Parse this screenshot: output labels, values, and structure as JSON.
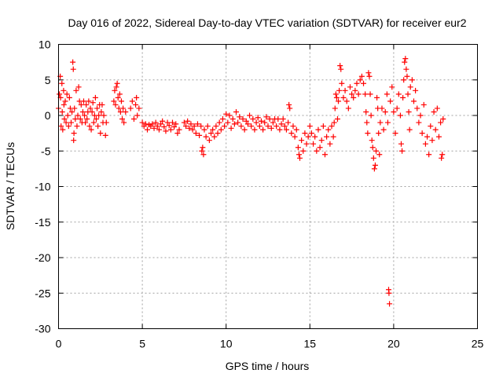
{
  "chart_data": {
    "type": "scatter",
    "title": "Day 016 of 2022, Sidereal Day-to-day VTEC variation (SDTVAR) for receiver eur2",
    "xlabel": "GPS time / hours",
    "ylabel": "SDTVAR / TECUs",
    "xlim": [
      0,
      25
    ],
    "ylim": [
      -30,
      10
    ],
    "xticks": [
      0,
      5,
      10,
      15,
      20,
      25
    ],
    "xtick_labels": [
      "0",
      "5",
      "10",
      "15",
      "20",
      "25"
    ],
    "yticks": [
      10,
      5,
      0,
      -5,
      -10,
      -15,
      -20,
      -25,
      -30
    ],
    "ytick_labels": [
      "10",
      "5",
      "0",
      "-5",
      "-10",
      "-15",
      "-20",
      "-25",
      "-30"
    ],
    "grid": true,
    "marker": "plus",
    "color": "#ff0000",
    "series": [
      {
        "name": "SDTVAR",
        "points": [
          [
            0.0,
            1.0
          ],
          [
            0.05,
            3.0
          ],
          [
            0.1,
            5.5
          ],
          [
            0.12,
            2.5
          ],
          [
            0.15,
            -1.5
          ],
          [
            0.2,
            4.5
          ],
          [
            0.22,
            0.5
          ],
          [
            0.25,
            -2.0
          ],
          [
            0.3,
            3.5
          ],
          [
            0.32,
            1.5
          ],
          [
            0.35,
            -0.5
          ],
          [
            0.4,
            2.0
          ],
          [
            0.45,
            -1.0
          ],
          [
            0.5,
            3.0
          ],
          [
            0.55,
            0.0
          ],
          [
            0.6,
            -1.5
          ],
          [
            0.65,
            2.5
          ],
          [
            0.7,
            1.0
          ],
          [
            0.75,
            -1.0
          ],
          [
            0.8,
            0.5
          ],
          [
            0.85,
            7.5
          ],
          [
            0.88,
            6.5
          ],
          [
            0.9,
            -3.5
          ],
          [
            0.92,
            -2.5
          ],
          [
            0.95,
            1.0
          ],
          [
            1.0,
            -0.5
          ],
          [
            1.05,
            3.5
          ],
          [
            1.1,
            -1.5
          ],
          [
            1.15,
            0.0
          ],
          [
            1.2,
            4.0
          ],
          [
            1.25,
            2.0
          ],
          [
            1.3,
            -0.5
          ],
          [
            1.35,
            1.5
          ],
          [
            1.4,
            -1.0
          ],
          [
            1.45,
            0.5
          ],
          [
            1.5,
            2.0
          ],
          [
            1.55,
            0.0
          ],
          [
            1.6,
            -1.0
          ],
          [
            1.65,
            1.5
          ],
          [
            1.7,
            -0.5
          ],
          [
            1.75,
            0.5
          ],
          [
            1.8,
            2.0
          ],
          [
            1.85,
            -1.5
          ],
          [
            1.9,
            1.0
          ],
          [
            1.95,
            -2.0
          ],
          [
            2.0,
            0.5
          ],
          [
            2.05,
            1.8
          ],
          [
            2.1,
            -1.0
          ],
          [
            2.15,
            0.0
          ],
          [
            2.2,
            2.5
          ],
          [
            2.25,
            -0.5
          ],
          [
            2.3,
            1.0
          ],
          [
            2.35,
            -1.5
          ],
          [
            2.4,
            0.0
          ],
          [
            2.45,
            1.5
          ],
          [
            2.5,
            -2.5
          ],
          [
            2.55,
            0.5
          ],
          [
            2.6,
            1.5
          ],
          [
            2.65,
            -1.0
          ],
          [
            2.7,
            0.0
          ],
          [
            2.8,
            -2.8
          ],
          [
            2.85,
            -1.0
          ],
          [
            3.3,
            2.0
          ],
          [
            3.35,
            3.5
          ],
          [
            3.4,
            1.5
          ],
          [
            3.45,
            4.0
          ],
          [
            3.5,
            4.5
          ],
          [
            3.55,
            2.5
          ],
          [
            3.6,
            1.0
          ],
          [
            3.65,
            3.0
          ],
          [
            3.7,
            0.5
          ],
          [
            3.75,
            2.0
          ],
          [
            3.8,
            -0.5
          ],
          [
            3.85,
            1.0
          ],
          [
            3.9,
            -1.0
          ],
          [
            4.0,
            0.5
          ],
          [
            4.3,
            1.0
          ],
          [
            4.4,
            2.0
          ],
          [
            4.5,
            -0.5
          ],
          [
            4.6,
            1.5
          ],
          [
            4.65,
            2.5
          ],
          [
            4.7,
            0.0
          ],
          [
            4.8,
            1.0
          ],
          [
            5.0,
            -1.0
          ],
          [
            5.1,
            -1.5
          ],
          [
            5.2,
            -1.2
          ],
          [
            5.3,
            -2.0
          ],
          [
            5.4,
            -1.3
          ],
          [
            5.5,
            -1.5
          ],
          [
            5.6,
            -1.2
          ],
          [
            5.7,
            -1.8
          ],
          [
            5.8,
            -1.0
          ],
          [
            5.9,
            -1.5
          ],
          [
            6.0,
            -2.0
          ],
          [
            6.1,
            -1.2
          ],
          [
            6.2,
            -0.8
          ],
          [
            6.3,
            -1.6
          ],
          [
            6.4,
            -2.2
          ],
          [
            6.5,
            -1.0
          ],
          [
            6.6,
            -1.4
          ],
          [
            6.7,
            -2.0
          ],
          [
            6.8,
            -1.0
          ],
          [
            6.9,
            -1.6
          ],
          [
            7.0,
            -1.2
          ],
          [
            7.1,
            -2.5
          ],
          [
            7.2,
            -2.0
          ],
          [
            7.5,
            -1.0
          ],
          [
            7.6,
            -1.5
          ],
          [
            7.7,
            -0.8
          ],
          [
            7.8,
            -1.8
          ],
          [
            7.9,
            -1.2
          ],
          [
            8.0,
            -2.0
          ],
          [
            8.1,
            -1.5
          ],
          [
            8.2,
            -2.5
          ],
          [
            8.3,
            -1.2
          ],
          [
            8.4,
            -2.8
          ],
          [
            8.5,
            -1.5
          ],
          [
            8.55,
            -5.0
          ],
          [
            8.6,
            -4.5
          ],
          [
            8.65,
            -5.5
          ],
          [
            8.7,
            -2.0
          ],
          [
            8.8,
            -3.0
          ],
          [
            8.9,
            -1.5
          ],
          [
            9.0,
            -3.5
          ],
          [
            9.1,
            -2.5
          ],
          [
            9.2,
            -2.0
          ],
          [
            9.3,
            -3.0
          ],
          [
            9.4,
            -1.5
          ],
          [
            9.5,
            -2.5
          ],
          [
            9.6,
            -1.0
          ],
          [
            9.7,
            -2.0
          ],
          [
            9.8,
            -0.5
          ],
          [
            9.9,
            -1.5
          ],
          [
            10.0,
            0.2
          ],
          [
            10.1,
            -1.0
          ],
          [
            10.2,
            0.0
          ],
          [
            10.3,
            -1.8
          ],
          [
            10.4,
            -0.5
          ],
          [
            10.5,
            -1.2
          ],
          [
            10.6,
            0.5
          ],
          [
            10.7,
            -1.0
          ],
          [
            10.8,
            -0.2
          ],
          [
            10.9,
            -1.5
          ],
          [
            11.0,
            -0.5
          ],
          [
            11.1,
            -2.0
          ],
          [
            11.2,
            -0.8
          ],
          [
            11.3,
            -1.2
          ],
          [
            11.4,
            0.0
          ],
          [
            11.5,
            -1.5
          ],
          [
            11.6,
            -0.5
          ],
          [
            11.7,
            -2.0
          ],
          [
            11.8,
            -1.0
          ],
          [
            11.9,
            -0.3
          ],
          [
            12.0,
            -1.5
          ],
          [
            12.1,
            -0.8
          ],
          [
            12.2,
            -2.0
          ],
          [
            12.3,
            -1.0
          ],
          [
            12.4,
            -0.2
          ],
          [
            12.5,
            -1.5
          ],
          [
            12.6,
            -0.5
          ],
          [
            12.7,
            -1.8
          ],
          [
            12.8,
            -1.0
          ],
          [
            12.9,
            -0.5
          ],
          [
            13.0,
            -1.5
          ],
          [
            13.1,
            -0.5
          ],
          [
            13.2,
            -2.0
          ],
          [
            13.3,
            -1.2
          ],
          [
            13.4,
            -0.5
          ],
          [
            13.5,
            -1.5
          ],
          [
            13.6,
            -2.0
          ],
          [
            13.7,
            -1.0
          ],
          [
            13.75,
            1.5
          ],
          [
            13.8,
            1.0
          ],
          [
            13.9,
            -2.5
          ],
          [
            14.0,
            -1.5
          ],
          [
            14.1,
            -3.0
          ],
          [
            14.2,
            -2.0
          ],
          [
            14.3,
            -4.5
          ],
          [
            14.35,
            -5.5
          ],
          [
            14.4,
            -6.0
          ],
          [
            14.5,
            -3.5
          ],
          [
            14.6,
            -5.0
          ],
          [
            14.7,
            -2.5
          ],
          [
            14.8,
            -4.0
          ],
          [
            14.9,
            -3.0
          ],
          [
            15.0,
            -1.5
          ],
          [
            15.1,
            -2.5
          ],
          [
            15.2,
            -4.0
          ],
          [
            15.3,
            -3.0
          ],
          [
            15.4,
            -5.0
          ],
          [
            15.5,
            -2.0
          ],
          [
            15.6,
            -4.5
          ],
          [
            15.7,
            -3.5
          ],
          [
            15.8,
            -1.5
          ],
          [
            15.9,
            -5.5
          ],
          [
            16.0,
            -3.0
          ],
          [
            16.1,
            -2.0
          ],
          [
            16.2,
            -4.0
          ],
          [
            16.3,
            -1.5
          ],
          [
            16.4,
            -3.0
          ],
          [
            16.45,
            -1.0
          ],
          [
            16.5,
            1.0
          ],
          [
            16.55,
            3.0
          ],
          [
            16.6,
            2.5
          ],
          [
            16.65,
            -0.5
          ],
          [
            16.7,
            2.0
          ],
          [
            16.75,
            3.5
          ],
          [
            16.8,
            7.0
          ],
          [
            16.85,
            6.5
          ],
          [
            16.9,
            4.5
          ],
          [
            17.0,
            2.5
          ],
          [
            17.1,
            3.5
          ],
          [
            17.2,
            2.0
          ],
          [
            17.3,
            1.0
          ],
          [
            17.4,
            4.0
          ],
          [
            17.5,
            3.0
          ],
          [
            17.6,
            2.5
          ],
          [
            17.7,
            3.5
          ],
          [
            17.8,
            4.5
          ],
          [
            17.9,
            3.0
          ],
          [
            18.0,
            5.0
          ],
          [
            18.1,
            5.5
          ],
          [
            18.2,
            4.5
          ],
          [
            18.3,
            3.0
          ],
          [
            18.35,
            0.5
          ],
          [
            18.4,
            -1.0
          ],
          [
            18.45,
            -2.5
          ],
          [
            18.5,
            6.0
          ],
          [
            18.55,
            5.5
          ],
          [
            18.6,
            3.0
          ],
          [
            18.65,
            0.0
          ],
          [
            18.7,
            -3.5
          ],
          [
            18.75,
            -4.5
          ],
          [
            18.8,
            -6.0
          ],
          [
            18.85,
            -7.5
          ],
          [
            18.9,
            -7.0
          ],
          [
            18.95,
            -5.0
          ],
          [
            19.0,
            2.5
          ],
          [
            19.05,
            1.0
          ],
          [
            19.1,
            -2.5
          ],
          [
            19.15,
            -5.5
          ],
          [
            19.2,
            -1.0
          ],
          [
            19.3,
            1.0
          ],
          [
            19.4,
            -2.0
          ],
          [
            19.5,
            0.5
          ],
          [
            19.6,
            3.0
          ],
          [
            19.65,
            -1.0
          ],
          [
            19.7,
            -24.5
          ],
          [
            19.72,
            -25.0
          ],
          [
            19.75,
            -26.5
          ],
          [
            19.8,
            2.0
          ],
          [
            19.9,
            4.0
          ],
          [
            20.0,
            0.5
          ],
          [
            20.1,
            -2.5
          ],
          [
            20.2,
            1.0
          ],
          [
            20.3,
            3.0
          ],
          [
            20.4,
            0.0
          ],
          [
            20.45,
            -4.0
          ],
          [
            20.5,
            -5.0
          ],
          [
            20.55,
            2.5
          ],
          [
            20.6,
            5.0
          ],
          [
            20.65,
            7.5
          ],
          [
            20.7,
            8.0
          ],
          [
            20.75,
            6.5
          ],
          [
            20.8,
            5.5
          ],
          [
            20.85,
            3.0
          ],
          [
            20.9,
            0.5
          ],
          [
            20.95,
            -2.0
          ],
          [
            21.0,
            4.0
          ],
          [
            21.1,
            5.0
          ],
          [
            21.2,
            2.0
          ],
          [
            21.3,
            3.5
          ],
          [
            21.4,
            1.0
          ],
          [
            21.5,
            -1.0
          ],
          [
            21.6,
            0.0
          ],
          [
            21.7,
            -2.5
          ],
          [
            21.8,
            1.5
          ],
          [
            21.9,
            -4.0
          ],
          [
            22.0,
            -3.0
          ],
          [
            22.1,
            -5.5
          ],
          [
            22.2,
            -1.5
          ],
          [
            22.3,
            -3.5
          ],
          [
            22.4,
            0.5
          ],
          [
            22.5,
            -2.0
          ],
          [
            22.6,
            1.0
          ],
          [
            22.7,
            -3.0
          ],
          [
            22.8,
            -1.0
          ],
          [
            22.85,
            -6.0
          ],
          [
            22.9,
            -5.5
          ],
          [
            22.95,
            -0.5
          ]
        ]
      }
    ]
  }
}
